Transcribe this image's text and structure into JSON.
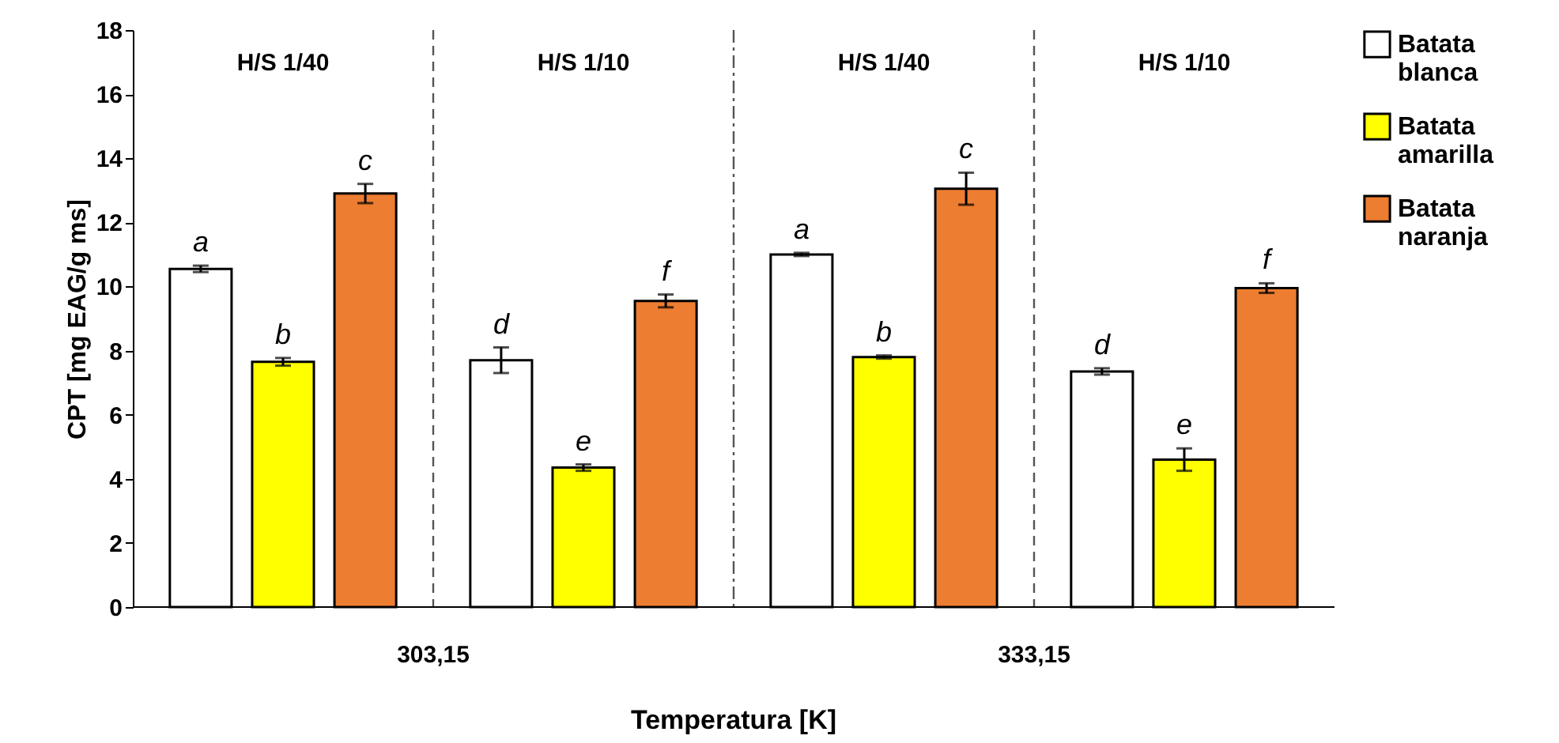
{
  "chart_data": {
    "type": "bar",
    "ylabel": "CPT [mg EAG/g ms]",
    "xlabel": "Temperatura [K]",
    "categories": [
      "H/S 1/40",
      "H/S 1/10",
      "H/S 1/40",
      "H/S 1/10"
    ],
    "series": [
      {
        "name": "Batata blanca",
        "color": "#ffffff",
        "values": [
          10.55,
          7.7,
          11.0,
          7.35
        ],
        "errors": [
          0.1,
          0.4,
          0.05,
          0.1
        ],
        "value_labels": [
          "a",
          "d",
          "a",
          "d"
        ]
      },
      {
        "name": "Batata amarilla",
        "color": "#ffff00",
        "values": [
          7.65,
          4.35,
          7.8,
          4.6
        ],
        "errors": [
          0.12,
          0.1,
          0.05,
          0.35
        ],
        "value_labels": [
          "b",
          "e",
          "b",
          "e"
        ]
      },
      {
        "name": "Batata naranja",
        "color": "#ed7d31",
        "values": [
          12.9,
          9.55,
          13.05,
          9.95
        ],
        "errors": [
          0.3,
          0.2,
          0.5,
          0.15
        ],
        "value_labels": [
          "c",
          "f",
          "c",
          "f"
        ]
      }
    ],
    "annotations": [
      "303,15",
      "333,15"
    ],
    "ylim": [
      0,
      18
    ],
    "yticks": [
      0,
      2,
      4,
      6,
      8,
      10,
      12,
      14,
      16,
      18
    ],
    "grid": false,
    "legend": "right"
  }
}
